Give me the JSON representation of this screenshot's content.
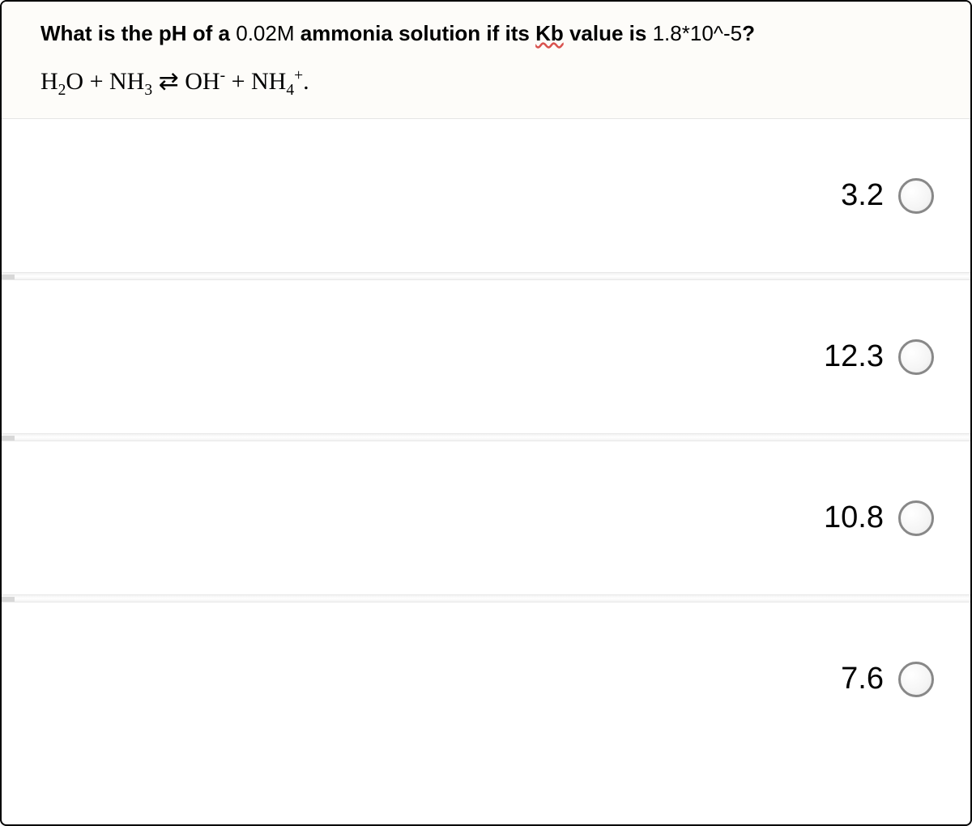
{
  "question": {
    "text_part1": "What is the pH of a ",
    "molarity": "0.02M",
    "text_part2": " ammonia solution if its ",
    "kb_text": "Kb",
    "text_part3": " value is ",
    "kb_value": "1.8*10^-5",
    "text_part4": "?",
    "equation_display": "H₂O + NH₃ ⇌ OH⁻ + NH₄⁺."
  },
  "options": [
    {
      "label": "3.2",
      "selected": false
    },
    {
      "label": "12.3",
      "selected": false
    },
    {
      "label": "10.8",
      "selected": false
    },
    {
      "label": "7.6",
      "selected": false
    }
  ],
  "styling": {
    "background_color": "#ffffff",
    "question_bg": "#fdfcf9",
    "border_color": "#000000",
    "radio_border": "#888888",
    "question_fontsize": 26,
    "equation_fontsize": 30,
    "option_fontsize": 38,
    "wavy_color": "#d9534f"
  }
}
